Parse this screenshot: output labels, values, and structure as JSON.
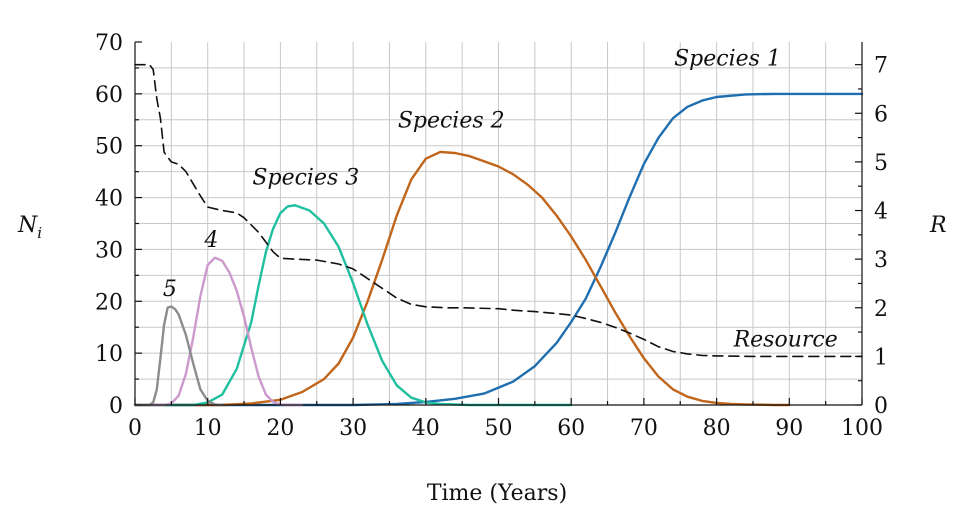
{
  "chart_data": {
    "type": "line",
    "xlabel": "Time (Years)",
    "ylabel_left": "N_i",
    "ylabel_right": "R",
    "xlim": [
      0,
      100
    ],
    "ylim_left": [
      0,
      70
    ],
    "ylim_right": [
      0,
      7.466
    ],
    "x_ticks": [
      0,
      10,
      20,
      30,
      40,
      50,
      60,
      70,
      80,
      90,
      100
    ],
    "y_left_ticks": [
      0,
      10,
      20,
      30,
      40,
      50,
      60,
      70
    ],
    "y_right_ticks": [
      0,
      1,
      2,
      3,
      4,
      5,
      6,
      7
    ],
    "grid": true,
    "series": [
      {
        "name": "Species 1",
        "axis": "left",
        "color": "#1f6fb0",
        "style": "solid",
        "x": [
          0,
          30,
          36,
          40,
          44,
          48,
          52,
          55,
          58,
          60,
          62,
          64,
          66,
          68,
          70,
          72,
          74,
          76,
          78,
          80,
          84,
          88,
          100
        ],
        "y": [
          0,
          0,
          0.2,
          0.6,
          1.2,
          2.2,
          4.5,
          7.5,
          12,
          16,
          20.5,
          26.5,
          33,
          40,
          46.5,
          51.5,
          55.3,
          57.5,
          58.7,
          59.4,
          59.9,
          60,
          60
        ]
      },
      {
        "name": "Species 2",
        "axis": "left",
        "color": "#c0651a",
        "style": "solid",
        "x": [
          0,
          12,
          16,
          20,
          23,
          26,
          28,
          30,
          32,
          34,
          36,
          38,
          40,
          42,
          44,
          46,
          48,
          50,
          52,
          54,
          56,
          58,
          60,
          62,
          64,
          66,
          68,
          70,
          72,
          74,
          76,
          78,
          80,
          82,
          84,
          86,
          88,
          90
        ],
        "y": [
          0,
          0,
          0.3,
          1,
          2.5,
          5,
          8,
          13,
          20,
          28,
          36.5,
          43.5,
          47.5,
          48.8,
          48.6,
          48,
          47,
          46,
          44.5,
          42.5,
          40,
          36.5,
          32.5,
          28,
          23,
          18,
          13.3,
          9,
          5.5,
          3,
          1.6,
          0.8,
          0.4,
          0.2,
          0.1,
          0.05,
          0,
          0
        ]
      },
      {
        "name": "Species 3",
        "axis": "left",
        "color": "#1fbfa0",
        "style": "solid",
        "x": [
          0,
          8,
          10,
          12,
          14,
          16,
          17,
          18,
          19,
          20,
          21,
          22,
          24,
          26,
          28,
          30,
          32,
          34,
          36,
          38,
          40,
          42,
          44,
          46,
          60
        ],
        "y": [
          0,
          0,
          0.5,
          2,
          7,
          16,
          23,
          29.5,
          34,
          37,
          38.3,
          38.5,
          37.5,
          35,
          30.5,
          23.5,
          15.5,
          8.5,
          3.8,
          1.4,
          0.5,
          0.2,
          0.1,
          0,
          0
        ]
      },
      {
        "name": "4",
        "axis": "left",
        "color": "#cc99cc",
        "style": "solid",
        "x": [
          0,
          4,
          5,
          6,
          7,
          8,
          9,
          10,
          11,
          12,
          13,
          14,
          15,
          16,
          17,
          18,
          19,
          20,
          21,
          23
        ],
        "y": [
          0,
          0,
          0.3,
          1.8,
          6,
          13,
          21,
          27,
          28.4,
          27.8,
          25.5,
          22,
          17,
          11,
          5.5,
          2,
          0.6,
          0.1,
          0,
          0
        ]
      },
      {
        "name": "5",
        "axis": "left",
        "color": "#8c8c8c",
        "style": "solid",
        "x": [
          0,
          2,
          2.5,
          3,
          3.5,
          4,
          4.5,
          5,
          5.5,
          6,
          7,
          8,
          9,
          10,
          11,
          12
        ],
        "y": [
          0,
          0,
          0.5,
          3,
          9,
          15.5,
          18.8,
          19,
          18.5,
          17.5,
          13.5,
          8,
          3,
          0.8,
          0.1,
          0
        ]
      },
      {
        "name": "Resource",
        "axis": "right",
        "color": "#111111",
        "style": "dashed",
        "x": [
          0,
          2,
          2.5,
          3,
          3.5,
          4,
          5,
          6,
          7,
          8,
          9,
          10,
          12,
          14,
          15,
          16,
          17,
          18,
          19,
          20,
          22,
          25,
          28,
          30,
          32,
          34,
          36,
          38,
          40,
          43,
          45,
          50,
          52,
          55,
          58,
          60,
          62,
          64,
          66,
          68,
          70,
          72,
          74,
          76,
          78,
          80,
          85,
          90,
          100
        ],
        "y": [
          7,
          7,
          6.9,
          6.3,
          5.9,
          5.2,
          5,
          4.95,
          4.8,
          4.55,
          4.3,
          4.07,
          4.0,
          3.95,
          3.85,
          3.7,
          3.55,
          3.35,
          3.15,
          3.02,
          3.0,
          2.98,
          2.9,
          2.8,
          2.6,
          2.4,
          2.2,
          2.07,
          2.02,
          2.0,
          2.0,
          1.98,
          1.95,
          1.92,
          1.88,
          1.85,
          1.78,
          1.7,
          1.6,
          1.48,
          1.35,
          1.2,
          1.1,
          1.05,
          1.02,
          1.01,
          1.0,
          1.0,
          1.0
        ]
      }
    ],
    "annotations": [
      {
        "text": "Species 1",
        "x": 81.5,
        "y": 65.5,
        "axis": "left"
      },
      {
        "text": "Species 2",
        "x": 43.5,
        "y": 53.5,
        "axis": "left"
      },
      {
        "text": "Species 3",
        "x": 23.5,
        "y": 42.5,
        "axis": "left"
      },
      {
        "text": "4",
        "x": 10.5,
        "y": 30.5,
        "axis": "left"
      },
      {
        "text": "5",
        "x": 4.8,
        "y": 21.0,
        "axis": "left"
      },
      {
        "text": "Resource",
        "x": 89.5,
        "y": 1.2,
        "axis": "right"
      }
    ]
  }
}
